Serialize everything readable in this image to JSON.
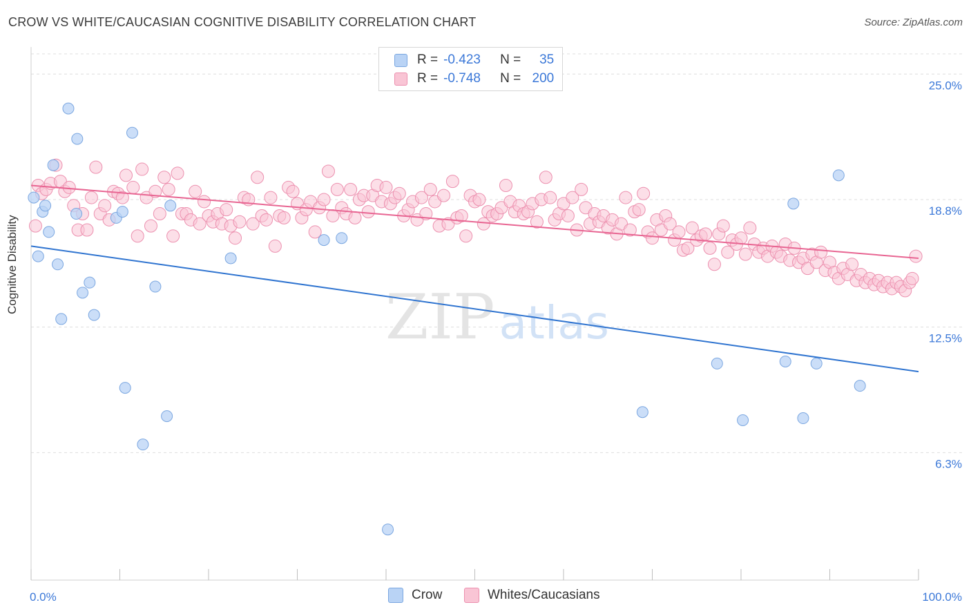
{
  "title": "CROW VS WHITE/CAUCASIAN COGNITIVE DISABILITY CORRELATION CHART",
  "source": "Source: ZipAtlas.com",
  "colors": {
    "crow_fill": "#b9d3f5",
    "crow_stroke": "#7aa6e0",
    "crow_line": "#2f74d0",
    "white_fill": "#f9c5d5",
    "white_stroke": "#ec8fae",
    "white_line": "#e86592",
    "tick_label": "#3b78d8",
    "grid": "#dddddd"
  },
  "legend": {
    "r_label": "R =",
    "n_label": "N =",
    "rows": [
      {
        "series": "Crow",
        "r": "-0.423",
        "n": "35"
      },
      {
        "series": "Whites/Caucasians",
        "r": "-0.748",
        "n": "200"
      }
    ]
  },
  "bottom_legend": [
    "Crow",
    "Whites/Caucasians"
  ],
  "watermark": "ZIPatlas",
  "chart_data": {
    "type": "scatter",
    "title": "CROW VS WHITE/CAUCASIAN COGNITIVE DISABILITY CORRELATION CHART",
    "xlabel": "",
    "ylabel": "Cognitive Disability",
    "xlim": [
      0,
      100
    ],
    "ylim": [
      0,
      26
    ],
    "x_tick_labels": [
      "0.0%",
      "100.0%"
    ],
    "y_ticks": [
      6.3,
      12.5,
      18.8,
      25.0
    ],
    "y_tick_labels": [
      "6.3%",
      "12.5%",
      "18.8%",
      "25.0%"
    ],
    "grid": true,
    "series": [
      {
        "name": "Crow",
        "trend": {
          "x": [
            0,
            100
          ],
          "y": [
            16.5,
            10.3
          ]
        },
        "points": [
          [
            0.3,
            18.9
          ],
          [
            0.8,
            16.0
          ],
          [
            1.3,
            18.2
          ],
          [
            1.6,
            18.5
          ],
          [
            2.0,
            17.2
          ],
          [
            2.5,
            20.5
          ],
          [
            3.0,
            15.6
          ],
          [
            3.4,
            12.9
          ],
          [
            4.2,
            23.3
          ],
          [
            5.1,
            18.1
          ],
          [
            5.2,
            21.8
          ],
          [
            5.8,
            14.2
          ],
          [
            6.6,
            14.7
          ],
          [
            7.1,
            13.1
          ],
          [
            9.6,
            17.9
          ],
          [
            10.3,
            18.2
          ],
          [
            10.6,
            9.5
          ],
          [
            11.4,
            22.1
          ],
          [
            12.6,
            6.7
          ],
          [
            14.0,
            14.5
          ],
          [
            15.3,
            8.1
          ],
          [
            15.7,
            18.5
          ],
          [
            22.5,
            15.9
          ],
          [
            33.0,
            16.8
          ],
          [
            35.0,
            16.9
          ],
          [
            40.2,
            2.5
          ],
          [
            68.9,
            8.3
          ],
          [
            77.3,
            10.7
          ],
          [
            80.2,
            7.9
          ],
          [
            85.0,
            10.8
          ],
          [
            85.9,
            18.6
          ],
          [
            87.0,
            8.0
          ],
          [
            88.5,
            10.7
          ],
          [
            91.0,
            20.0
          ],
          [
            93.4,
            9.6
          ]
        ]
      },
      {
        "name": "Whites/Caucasians",
        "trend": {
          "x": [
            0,
            100
          ],
          "y": [
            19.5,
            15.9
          ]
        },
        "points": [
          [
            0.5,
            17.5
          ],
          [
            0.8,
            19.5
          ],
          [
            1.2,
            19.1
          ],
          [
            1.7,
            19.3
          ],
          [
            2.2,
            19.6
          ],
          [
            2.8,
            20.5
          ],
          [
            3.3,
            19.7
          ],
          [
            3.8,
            19.2
          ],
          [
            4.3,
            19.4
          ],
          [
            4.8,
            18.5
          ],
          [
            5.3,
            17.3
          ],
          [
            5.8,
            18.1
          ],
          [
            6.3,
            17.3
          ],
          [
            6.8,
            18.9
          ],
          [
            7.3,
            20.4
          ],
          [
            7.8,
            18.1
          ],
          [
            8.3,
            18.5
          ],
          [
            8.8,
            17.8
          ],
          [
            9.3,
            19.2
          ],
          [
            9.8,
            19.1
          ],
          [
            10.3,
            18.9
          ],
          [
            10.7,
            20.0
          ],
          [
            11.5,
            19.4
          ],
          [
            12.0,
            17.0
          ],
          [
            12.5,
            20.3
          ],
          [
            13.0,
            18.9
          ],
          [
            13.5,
            17.5
          ],
          [
            14.0,
            19.2
          ],
          [
            14.5,
            18.1
          ],
          [
            15.0,
            19.9
          ],
          [
            15.5,
            19.3
          ],
          [
            16.0,
            17.0
          ],
          [
            16.5,
            20.1
          ],
          [
            17.0,
            18.1
          ],
          [
            17.5,
            18.1
          ],
          [
            18.0,
            17.8
          ],
          [
            18.5,
            19.2
          ],
          [
            19.0,
            17.6
          ],
          [
            19.5,
            18.7
          ],
          [
            20.0,
            18.0
          ],
          [
            20.5,
            17.7
          ],
          [
            21.0,
            18.1
          ],
          [
            21.5,
            17.6
          ],
          [
            22.0,
            18.3
          ],
          [
            22.5,
            17.5
          ],
          [
            23.0,
            16.9
          ],
          [
            23.5,
            17.7
          ],
          [
            24.0,
            18.9
          ],
          [
            24.5,
            18.8
          ],
          [
            25.0,
            17.6
          ],
          [
            25.5,
            19.9
          ],
          [
            26.0,
            18.0
          ],
          [
            26.5,
            17.8
          ],
          [
            27.0,
            18.9
          ],
          [
            27.5,
            16.5
          ],
          [
            28.0,
            18.0
          ],
          [
            28.5,
            17.9
          ],
          [
            29.0,
            19.4
          ],
          [
            29.5,
            19.2
          ],
          [
            30.0,
            18.6
          ],
          [
            30.5,
            17.9
          ],
          [
            31.0,
            18.3
          ],
          [
            31.5,
            18.7
          ],
          [
            32.0,
            17.2
          ],
          [
            32.5,
            18.4
          ],
          [
            33.0,
            18.8
          ],
          [
            33.5,
            20.2
          ],
          [
            34.0,
            18.0
          ],
          [
            34.5,
            19.3
          ],
          [
            35.0,
            18.4
          ],
          [
            35.5,
            18.1
          ],
          [
            36.0,
            19.3
          ],
          [
            36.5,
            17.9
          ],
          [
            37.0,
            18.8
          ],
          [
            37.5,
            19.0
          ],
          [
            38.0,
            18.2
          ],
          [
            38.5,
            19.0
          ],
          [
            39.0,
            19.5
          ],
          [
            39.5,
            18.7
          ],
          [
            40.0,
            19.4
          ],
          [
            40.5,
            18.6
          ],
          [
            41.0,
            18.9
          ],
          [
            41.5,
            19.1
          ],
          [
            42.0,
            18.0
          ],
          [
            42.5,
            18.3
          ],
          [
            43.0,
            18.7
          ],
          [
            43.5,
            17.8
          ],
          [
            44.0,
            18.9
          ],
          [
            44.5,
            18.1
          ],
          [
            45.0,
            19.3
          ],
          [
            45.5,
            18.7
          ],
          [
            46.0,
            17.5
          ],
          [
            46.5,
            19.0
          ],
          [
            47.0,
            17.6
          ],
          [
            47.5,
            19.7
          ],
          [
            48.0,
            17.9
          ],
          [
            48.5,
            18.0
          ],
          [
            49.0,
            17.0
          ],
          [
            49.5,
            19.0
          ],
          [
            50.0,
            18.7
          ],
          [
            50.5,
            18.8
          ],
          [
            51.0,
            17.6
          ],
          [
            51.5,
            18.2
          ],
          [
            52.0,
            18.0
          ],
          [
            52.5,
            18.1
          ],
          [
            53.0,
            18.4
          ],
          [
            53.5,
            19.5
          ],
          [
            54.0,
            18.7
          ],
          [
            54.5,
            18.2
          ],
          [
            55.0,
            18.5
          ],
          [
            55.5,
            18.1
          ],
          [
            56.0,
            18.2
          ],
          [
            56.5,
            18.6
          ],
          [
            57.0,
            17.7
          ],
          [
            57.5,
            18.8
          ],
          [
            58.0,
            19.9
          ],
          [
            58.5,
            18.9
          ],
          [
            59.0,
            17.8
          ],
          [
            59.5,
            18.1
          ],
          [
            60.0,
            18.6
          ],
          [
            60.5,
            18.0
          ],
          [
            61.0,
            18.9
          ],
          [
            61.5,
            17.3
          ],
          [
            62.0,
            19.3
          ],
          [
            62.5,
            18.4
          ],
          [
            63.0,
            17.6
          ],
          [
            63.5,
            18.1
          ],
          [
            64.0,
            17.7
          ],
          [
            64.5,
            18.0
          ],
          [
            65.0,
            17.4
          ],
          [
            65.5,
            17.8
          ],
          [
            66.0,
            17.1
          ],
          [
            66.5,
            17.6
          ],
          [
            67.0,
            18.9
          ],
          [
            67.5,
            17.3
          ],
          [
            68.0,
            18.2
          ],
          [
            68.5,
            18.3
          ],
          [
            69.0,
            19.1
          ],
          [
            69.5,
            17.2
          ],
          [
            70.0,
            16.9
          ],
          [
            70.5,
            17.8
          ],
          [
            71.0,
            17.3
          ],
          [
            71.5,
            18.0
          ],
          [
            72.0,
            17.6
          ],
          [
            72.5,
            16.8
          ],
          [
            73.0,
            17.2
          ],
          [
            73.5,
            16.3
          ],
          [
            74.0,
            16.4
          ],
          [
            74.5,
            17.4
          ],
          [
            75.0,
            16.8
          ],
          [
            75.5,
            17.0
          ],
          [
            76.0,
            17.1
          ],
          [
            76.5,
            16.4
          ],
          [
            77.0,
            15.6
          ],
          [
            77.5,
            17.1
          ],
          [
            78.0,
            17.5
          ],
          [
            78.5,
            16.2
          ],
          [
            79.0,
            16.8
          ],
          [
            79.5,
            16.6
          ],
          [
            80.0,
            16.9
          ],
          [
            80.5,
            16.1
          ],
          [
            81.0,
            17.4
          ],
          [
            81.5,
            16.6
          ],
          [
            82.0,
            16.2
          ],
          [
            82.5,
            16.4
          ],
          [
            83.0,
            16.0
          ],
          [
            83.5,
            16.5
          ],
          [
            84.0,
            16.2
          ],
          [
            84.5,
            16.0
          ],
          [
            85.0,
            16.6
          ],
          [
            85.5,
            15.8
          ],
          [
            86.0,
            16.4
          ],
          [
            86.5,
            15.7
          ],
          [
            87.0,
            15.9
          ],
          [
            87.5,
            15.4
          ],
          [
            88.0,
            16.1
          ],
          [
            88.5,
            15.7
          ],
          [
            89.0,
            16.2
          ],
          [
            89.5,
            15.3
          ],
          [
            90.0,
            15.7
          ],
          [
            90.5,
            15.2
          ],
          [
            91.0,
            14.9
          ],
          [
            91.5,
            15.4
          ],
          [
            92.0,
            15.1
          ],
          [
            92.5,
            15.6
          ],
          [
            93.0,
            14.8
          ],
          [
            93.5,
            15.1
          ],
          [
            94.0,
            14.7
          ],
          [
            94.5,
            14.9
          ],
          [
            95.0,
            14.6
          ],
          [
            95.5,
            14.8
          ],
          [
            96.0,
            14.5
          ],
          [
            96.5,
            14.7
          ],
          [
            97.0,
            14.4
          ],
          [
            97.5,
            14.7
          ],
          [
            98.0,
            14.5
          ],
          [
            98.5,
            14.3
          ],
          [
            99.0,
            14.7
          ],
          [
            99.3,
            14.9
          ],
          [
            99.7,
            16.0
          ]
        ]
      }
    ]
  }
}
